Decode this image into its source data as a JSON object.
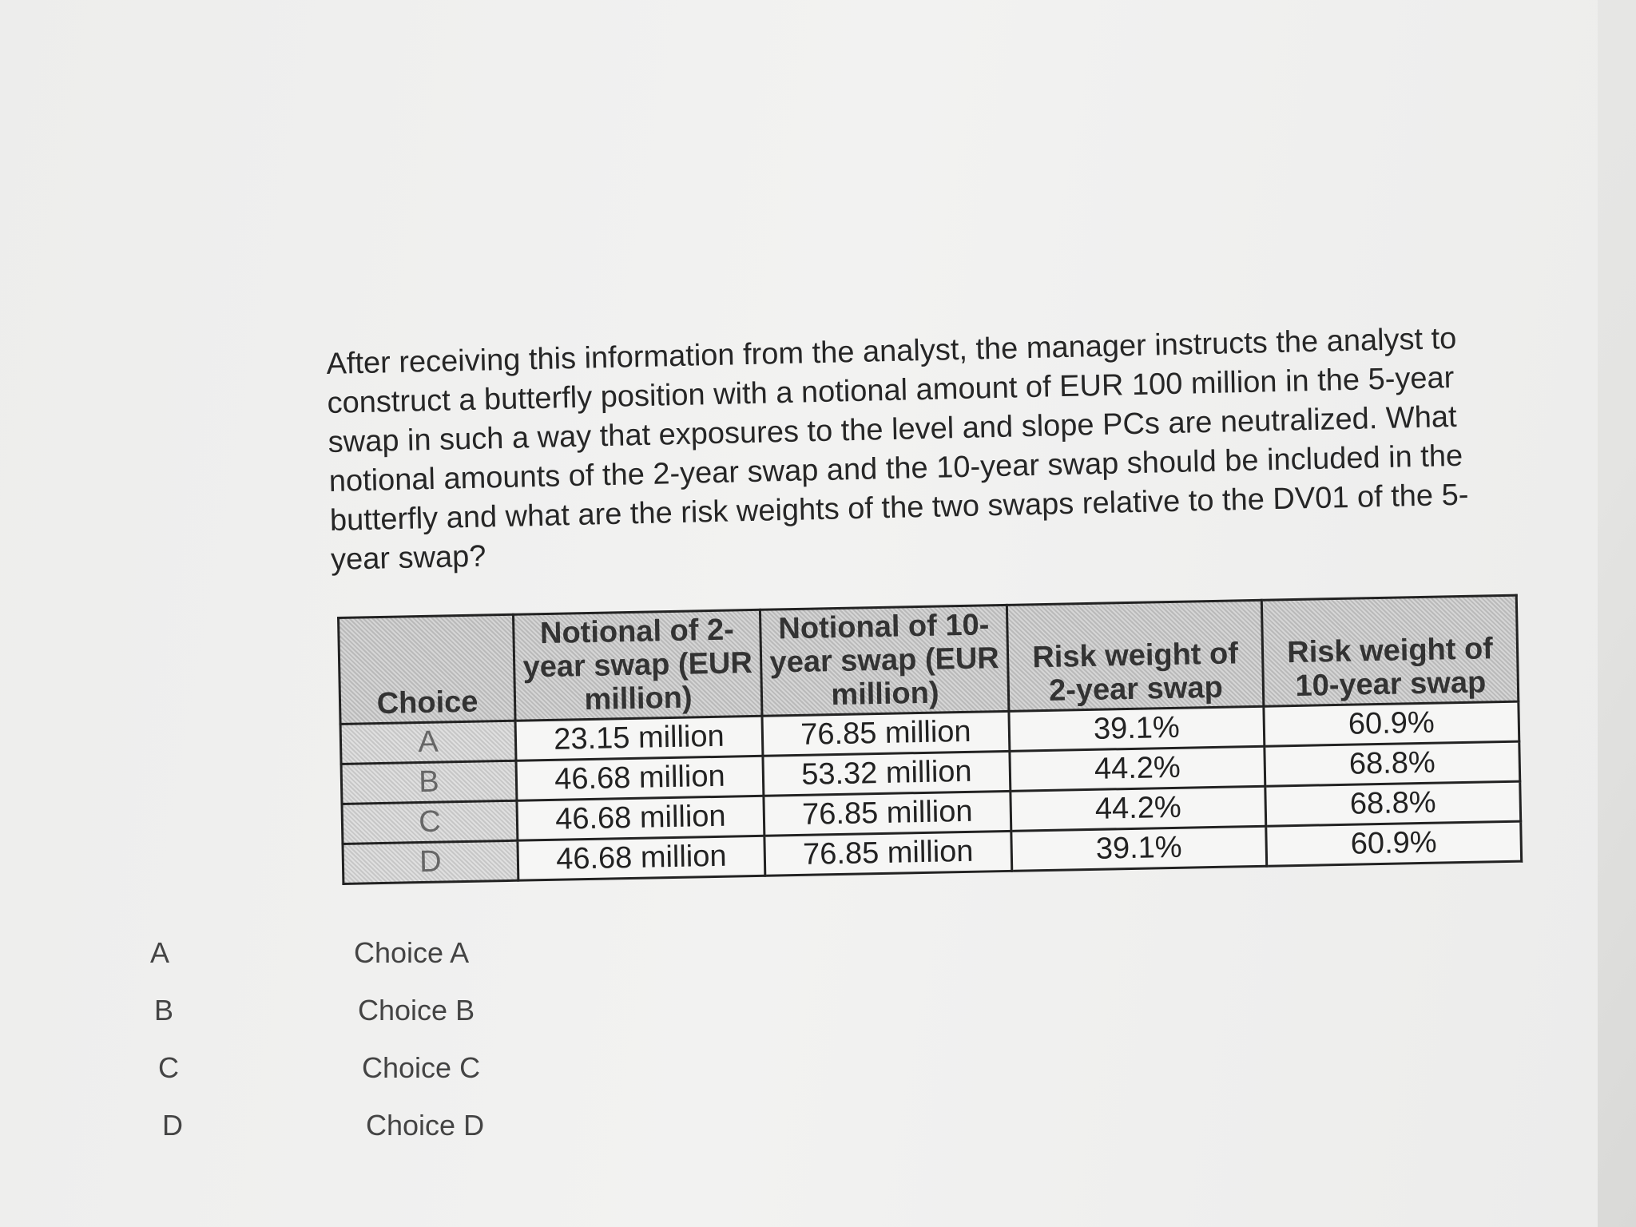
{
  "question": "After receiving this information from the analyst, the manager instructs the analyst to construct a butterfly position with a notional amount of EUR 100 million in the 5-year swap in such a way that exposures to the level and slope PCs are neutralized. What notional amounts of the 2-year swap and the 10-year swap should be included in the butterfly and what are the risk weights of the two swaps relative to the DV01 of the 5-year swap?",
  "table": {
    "headers": [
      "Choice",
      "Notional of 2-year swap (EUR million)",
      "Notional of 10-year swap (EUR million)",
      "Risk weight of 2-year swap",
      "Risk weight of 10-year swap"
    ],
    "rows": [
      [
        "A",
        "23.15 million",
        "76.85 million",
        "39.1%",
        "60.9%"
      ],
      [
        "B",
        "46.68 million",
        "53.32 million",
        "44.2%",
        "68.8%"
      ],
      [
        "C",
        "46.68 million",
        "76.85 million",
        "44.2%",
        "68.8%"
      ],
      [
        "D",
        "46.68 million",
        "76.85 million",
        "39.1%",
        "60.9%"
      ]
    ]
  },
  "options": [
    {
      "letter": "A",
      "label": "Choice A"
    },
    {
      "letter": "B",
      "label": "Choice B"
    },
    {
      "letter": "C",
      "label": "Choice C"
    },
    {
      "letter": "D",
      "label": "Choice D"
    }
  ]
}
